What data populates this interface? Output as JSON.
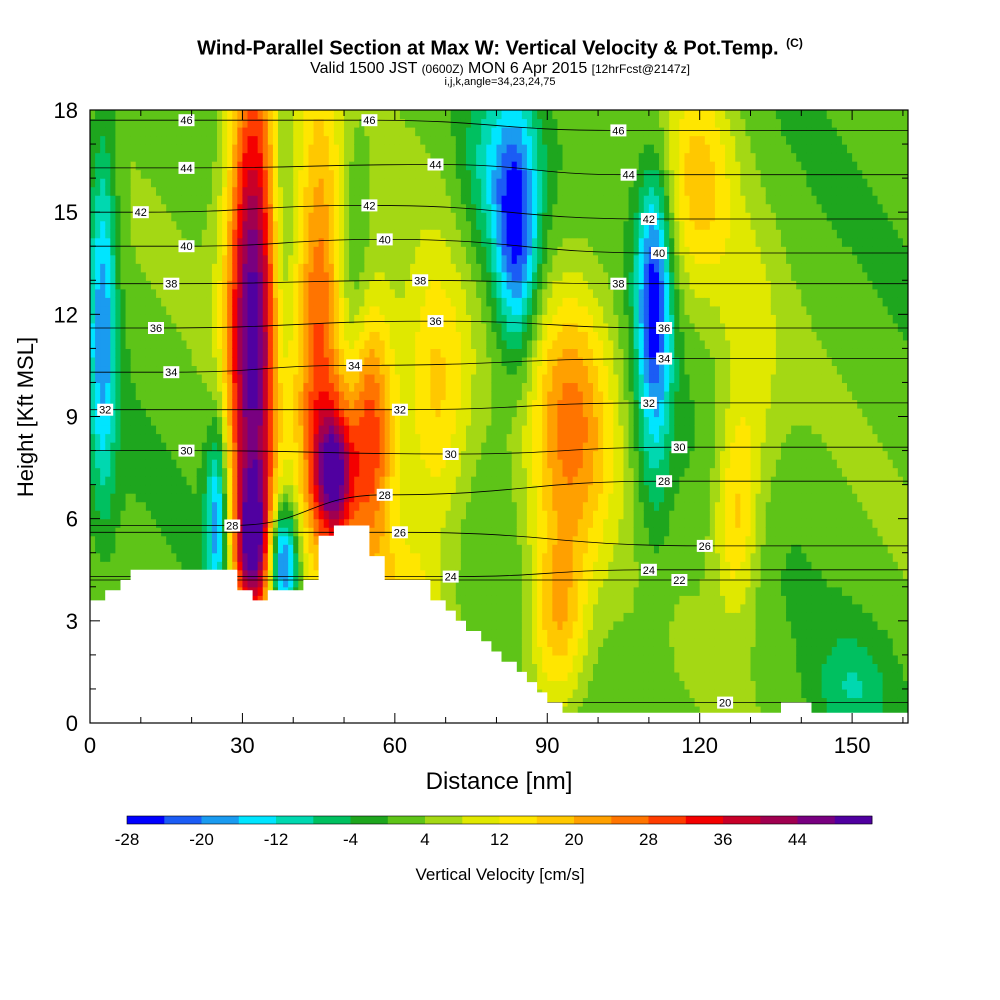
{
  "title": {
    "main": "Wind-Parallel Section at Max W: Vertical Velocity & Pot.Temp.",
    "copyright": "(C)",
    "valid_prefix": "Valid 1500 JST",
    "valid_utc": "(0600Z)",
    "valid_date": "MON 6 Apr 2015",
    "forecast": "[12hrFcst@2147z]",
    "indices": "i,j,k,angle=34,23,24,75"
  },
  "chart_data": {
    "type": "heatmap",
    "xlabel": "Distance [nm]",
    "ylabel": "Height [Kft MSL]",
    "xlim": [
      0,
      161
    ],
    "ylim": [
      0,
      18
    ],
    "x_ticks": [
      0,
      30,
      60,
      90,
      120,
      150
    ],
    "y_ticks": [
      0,
      3,
      6,
      9,
      12,
      15,
      18
    ],
    "colorbar": {
      "label": "Vertical Velocity [cm/s]",
      "tick_values": [
        -28,
        -20,
        -12,
        -4,
        4,
        12,
        20,
        28,
        36,
        44
      ],
      "levels": [
        -28,
        -24,
        -20,
        -16,
        -12,
        -8,
        -4,
        0,
        4,
        8,
        12,
        16,
        20,
        24,
        28,
        32,
        36,
        40,
        44,
        48
      ],
      "colors": [
        "#0000ff",
        "#1b5cf5",
        "#1a9bf0",
        "#00e5ff",
        "#00d8b0",
        "#00c060",
        "#1ea61e",
        "#5ec418",
        "#a4d814",
        "#e0e800",
        "#ffe600",
        "#ffc800",
        "#ffa000",
        "#ff7400",
        "#ff3c00",
        "#f40000",
        "#c80028",
        "#a00050",
        "#780080",
        "#5000a0"
      ]
    },
    "terrain_kft": [
      [
        0,
        3.6
      ],
      [
        3,
        3.6
      ],
      [
        3,
        3.9
      ],
      [
        6,
        3.9
      ],
      [
        6,
        4.2
      ],
      [
        8,
        4.2
      ],
      [
        8,
        4.5
      ],
      [
        29,
        4.5
      ],
      [
        29,
        3.9
      ],
      [
        32,
        3.9
      ],
      [
        32,
        3.6
      ],
      [
        35,
        3.6
      ],
      [
        35,
        3.9
      ],
      [
        42,
        3.9
      ],
      [
        42,
        4.2
      ],
      [
        45,
        4.2
      ],
      [
        45,
        5.5
      ],
      [
        48,
        5.5
      ],
      [
        48,
        5.8
      ],
      [
        55,
        5.8
      ],
      [
        55,
        4.9
      ],
      [
        58,
        4.9
      ],
      [
        58,
        4.2
      ],
      [
        67,
        4.2
      ],
      [
        67,
        3.6
      ],
      [
        70,
        3.6
      ],
      [
        70,
        3.3
      ],
      [
        72,
        3.3
      ],
      [
        72,
        3.0
      ],
      [
        74,
        3.0
      ],
      [
        74,
        2.7
      ],
      [
        77,
        2.7
      ],
      [
        77,
        2.4
      ],
      [
        79,
        2.4
      ],
      [
        79,
        2.1
      ],
      [
        81,
        2.1
      ],
      [
        81,
        1.8
      ],
      [
        84,
        1.8
      ],
      [
        84,
        1.5
      ],
      [
        86,
        1.5
      ],
      [
        86,
        1.2
      ],
      [
        88,
        1.2
      ],
      [
        88,
        0.9
      ],
      [
        90,
        0.9
      ],
      [
        90,
        0.6
      ],
      [
        93,
        0.6
      ],
      [
        93,
        0.3
      ],
      [
        136,
        0.3
      ],
      [
        136,
        0.6
      ],
      [
        142,
        0.6
      ],
      [
        142,
        0.3
      ],
      [
        161,
        0.3
      ]
    ],
    "updrafts": [
      {
        "x": 32,
        "y": 12,
        "w_cm_s": 48,
        "sx": 3.5,
        "sy": 6
      },
      {
        "x": 32,
        "y": 5.2,
        "w_cm_s": 30,
        "sx": 2.5,
        "sy": 1.5
      },
      {
        "x": 45,
        "y": 11.5,
        "w_cm_s": 28,
        "sx": 3.5,
        "sy": 5
      },
      {
        "x": 48,
        "y": 7.3,
        "w_cm_s": 36,
        "sx": 2.5,
        "sy": 1.3
      },
      {
        "x": 55,
        "y": 8.5,
        "w_cm_s": 30,
        "sx": 3.5,
        "sy": 2.8
      },
      {
        "x": 68,
        "y": 9.5,
        "w_cm_s": 16,
        "sx": 5,
        "sy": 3
      },
      {
        "x": 95,
        "y": 9,
        "w_cm_s": 22,
        "sx": 6,
        "sy": 3
      },
      {
        "x": 92,
        "y": 3,
        "w_cm_s": 18,
        "sx": 4,
        "sy": 2
      },
      {
        "x": 120,
        "y": 16,
        "w_cm_s": 14,
        "sx": 5,
        "sy": 2.5
      },
      {
        "x": 127,
        "y": 6,
        "w_cm_s": 14,
        "sx": 3,
        "sy": 2
      },
      {
        "x": 62,
        "y": 3.5,
        "w_cm_s": 10,
        "sx": 5,
        "sy": 1.5
      },
      {
        "x": 130,
        "y": 10,
        "w_cm_s": 8,
        "sx": 4,
        "sy": 3
      }
    ],
    "downdrafts": [
      {
        "x": 2.5,
        "y": 12,
        "w_cm_s": -20,
        "sx": 2,
        "sy": 4
      },
      {
        "x": 25,
        "y": 6,
        "w_cm_s": -22,
        "sx": 1.5,
        "sy": 2
      },
      {
        "x": 38,
        "y": 4.8,
        "w_cm_s": -30,
        "sx": 2,
        "sy": 1.2
      },
      {
        "x": 38,
        "y": 14,
        "w_cm_s": -6,
        "sx": 1.5,
        "sy": 4
      },
      {
        "x": 84,
        "y": 14,
        "w_cm_s": -24,
        "sx": 3,
        "sy": 2.5
      },
      {
        "x": 80,
        "y": 16,
        "w_cm_s": -12,
        "sx": 5,
        "sy": 2
      },
      {
        "x": 111,
        "y": 13,
        "w_cm_s": -24,
        "sx": 2.5,
        "sy": 2.5
      },
      {
        "x": 111,
        "y": 9,
        "w_cm_s": -10,
        "sx": 2.5,
        "sy": 3
      },
      {
        "x": 150,
        "y": 1,
        "w_cm_s": -8,
        "sx": 5,
        "sy": 1.2
      },
      {
        "x": 52,
        "y": 13,
        "w_cm_s": -6,
        "sx": 2,
        "sy": 3
      }
    ],
    "theta_contours": {
      "labels": [
        {
          "text": "46",
          "x": 19,
          "y": 17.7
        },
        {
          "text": "46",
          "x": 55,
          "y": 17.7
        },
        {
          "text": "46",
          "x": 104,
          "y": 17.4
        },
        {
          "text": "44",
          "x": 19,
          "y": 16.3
        },
        {
          "text": "44",
          "x": 68,
          "y": 16.4
        },
        {
          "text": "44",
          "x": 106,
          "y": 16.1
        },
        {
          "text": "42",
          "x": 10,
          "y": 15.0
        },
        {
          "text": "42",
          "x": 55,
          "y": 15.2
        },
        {
          "text": "42",
          "x": 110,
          "y": 14.8
        },
        {
          "text": "40",
          "x": 19,
          "y": 14.0
        },
        {
          "text": "40",
          "x": 58,
          "y": 14.2
        },
        {
          "text": "40",
          "x": 112,
          "y": 13.8
        },
        {
          "text": "38",
          "x": 16,
          "y": 12.9
        },
        {
          "text": "38",
          "x": 65,
          "y": 13.0
        },
        {
          "text": "38",
          "x": 104,
          "y": 12.9
        },
        {
          "text": "36",
          "x": 13,
          "y": 11.6
        },
        {
          "text": "36",
          "x": 68,
          "y": 11.8
        },
        {
          "text": "36",
          "x": 113,
          "y": 11.6
        },
        {
          "text": "34",
          "x": 16,
          "y": 10.3
        },
        {
          "text": "34",
          "x": 52,
          "y": 10.5
        },
        {
          "text": "34",
          "x": 113,
          "y": 10.7
        },
        {
          "text": "32",
          "x": 3,
          "y": 9.2
        },
        {
          "text": "32",
          "x": 61,
          "y": 9.2
        },
        {
          "text": "32",
          "x": 110,
          "y": 9.4
        },
        {
          "text": "30",
          "x": 19,
          "y": 8.0
        },
        {
          "text": "30",
          "x": 71,
          "y": 7.9
        },
        {
          "text": "30",
          "x": 116,
          "y": 8.1
        },
        {
          "text": "28",
          "x": 28,
          "y": 5.8
        },
        {
          "text": "28",
          "x": 58,
          "y": 6.7
        },
        {
          "text": "28",
          "x": 113,
          "y": 7.1
        },
        {
          "text": "26",
          "x": 61,
          "y": 5.6
        },
        {
          "text": "26",
          "x": 121,
          "y": 5.2
        },
        {
          "text": "24",
          "x": 71,
          "y": 4.3
        },
        {
          "text": "24",
          "x": 110,
          "y": 4.5
        },
        {
          "text": "22",
          "x": 116,
          "y": 4.2
        },
        {
          "text": "20",
          "x": 125,
          "y": 0.6
        }
      ]
    }
  }
}
